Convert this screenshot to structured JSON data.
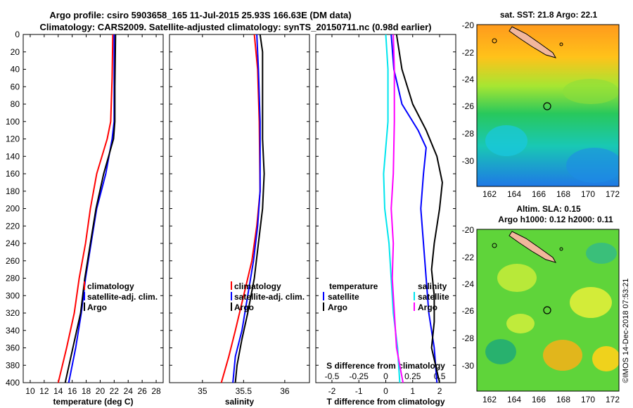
{
  "header": {
    "line1": "Argo profile: csiro 5903658_165 11-Jul-2015 25.93S 166.63E (DM data)",
    "line2": "Climatology: CARS2009. Satellite-adjusted climatology: synTS_20150711.nc (0.98d earlier)"
  },
  "colors": {
    "climatology": "#ff0000",
    "satellite": "#0000ff",
    "argo": "#000000",
    "salinity_diff": "#00e5ee",
    "satellite_salinity": "#ff00ff"
  },
  "depth_axis": {
    "ticks": [
      0,
      20,
      40,
      60,
      80,
      100,
      120,
      140,
      160,
      180,
      200,
      220,
      240,
      260,
      280,
      300,
      320,
      340,
      360,
      380,
      400
    ],
    "ylim": [
      0,
      400
    ]
  },
  "chart_data": [
    {
      "id": "temperature",
      "type": "line",
      "xlabel": "temperature (deg C)",
      "xlim": [
        9,
        29
      ],
      "xticks": [
        10,
        12,
        14,
        16,
        18,
        20,
        22,
        24,
        26,
        28
      ],
      "xtick_labels": [
        "10",
        "12",
        "14",
        "16",
        "18",
        "20",
        "22",
        "24",
        "26",
        "28"
      ],
      "legend": [
        "climatology",
        "satellite-adj. clim.",
        "Argo"
      ],
      "series": [
        {
          "name": "climatology",
          "color": "#ff0000",
          "points": [
            [
              21.8,
              0
            ],
            [
              21.7,
              50
            ],
            [
              21.5,
              100
            ],
            [
              21.0,
              120
            ],
            [
              19.5,
              160
            ],
            [
              18.6,
              200
            ],
            [
              17.9,
              240
            ],
            [
              17.0,
              280
            ],
            [
              16.3,
              320
            ],
            [
              15.2,
              360
            ],
            [
              14.0,
              400
            ]
          ]
        },
        {
          "name": "satellite-adj. clim.",
          "color": "#0000ff",
          "points": [
            [
              22.0,
              0
            ],
            [
              22.0,
              60
            ],
            [
              22.0,
              100
            ],
            [
              21.7,
              120
            ],
            [
              20.8,
              160
            ],
            [
              19.5,
              200
            ],
            [
              18.7,
              240
            ],
            [
              17.9,
              280
            ],
            [
              17.3,
              320
            ],
            [
              16.5,
              360
            ],
            [
              15.5,
              400
            ]
          ]
        },
        {
          "name": "Argo",
          "color": "#000000",
          "points": [
            [
              22.2,
              0
            ],
            [
              22.1,
              60
            ],
            [
              22.1,
              100
            ],
            [
              21.9,
              120
            ],
            [
              20.5,
              160
            ],
            [
              19.4,
              200
            ],
            [
              18.6,
              240
            ],
            [
              17.8,
              280
            ],
            [
              17.2,
              320
            ],
            [
              16.1,
              360
            ],
            [
              15.0,
              400
            ]
          ]
        }
      ]
    },
    {
      "id": "salinity",
      "type": "line",
      "xlabel": "salinity",
      "xlim": [
        34.6,
        36.3
      ],
      "xticks": [
        35,
        35.5,
        36
      ],
      "xtick_labels": [
        "35",
        "35.5",
        "36"
      ],
      "legend": [
        "climatology",
        "satellite-adj. clim.",
        "Argo"
      ],
      "series": [
        {
          "name": "climatology",
          "color": "#ff0000",
          "points": [
            [
              35.63,
              0
            ],
            [
              35.67,
              40
            ],
            [
              35.69,
              100
            ],
            [
              35.7,
              180
            ],
            [
              35.66,
              220
            ],
            [
              35.6,
              260
            ],
            [
              35.5,
              300
            ],
            [
              35.4,
              340
            ],
            [
              35.32,
              370
            ],
            [
              35.23,
              400
            ]
          ]
        },
        {
          "name": "satellite-adj. clim.",
          "color": "#0000ff",
          "points": [
            [
              35.66,
              0
            ],
            [
              35.68,
              40
            ],
            [
              35.7,
              100
            ],
            [
              35.7,
              180
            ],
            [
              35.67,
              220
            ],
            [
              35.62,
              260
            ],
            [
              35.55,
              300
            ],
            [
              35.48,
              340
            ],
            [
              35.4,
              370
            ],
            [
              35.37,
              400
            ]
          ]
        },
        {
          "name": "Argo",
          "color": "#000000",
          "points": [
            [
              35.7,
              0
            ],
            [
              35.73,
              20
            ],
            [
              35.73,
              120
            ],
            [
              35.75,
              160
            ],
            [
              35.73,
              200
            ],
            [
              35.68,
              240
            ],
            [
              35.63,
              280
            ],
            [
              35.55,
              320
            ],
            [
              35.48,
              350
            ],
            [
              35.42,
              380
            ],
            [
              35.4,
              400
            ]
          ]
        }
      ]
    },
    {
      "id": "differences",
      "type": "line",
      "xlabel": "T difference from climatology",
      "xlim": [
        -2.6,
        2.6
      ],
      "xticks": [
        -2,
        -1,
        0,
        1,
        2
      ],
      "xtick_labels": [
        "-2",
        "-1",
        "0",
        "1",
        "2"
      ],
      "secondary_xlabel": "S difference from climatology",
      "secondary_xlim": [
        -0.65,
        0.65
      ],
      "secondary_xticks": [
        -0.5,
        -0.25,
        0,
        0.25,
        0.5
      ],
      "secondary_xtick_labels": [
        "-0.5",
        "-0.25",
        "0",
        "0.25",
        "0.5"
      ],
      "legend_left_title": "temperature",
      "legend_right_title": "salinity",
      "legend_left": [
        "satellite",
        "Argo"
      ],
      "legend_right": [
        "satellite",
        "Argo"
      ],
      "series": [
        {
          "name": "temperature satellite",
          "color": "#0000ff",
          "axis": "T",
          "points": [
            [
              0.2,
              0
            ],
            [
              0.3,
              40
            ],
            [
              0.6,
              80
            ],
            [
              1.2,
              110
            ],
            [
              1.5,
              130
            ],
            [
              1.4,
              160
            ],
            [
              1.3,
              200
            ],
            [
              1.4,
              240
            ],
            [
              1.5,
              280
            ],
            [
              1.6,
              320
            ],
            [
              1.8,
              360
            ],
            [
              1.9,
              400
            ]
          ]
        },
        {
          "name": "temperature Argo",
          "color": "#000000",
          "axis": "T",
          "points": [
            [
              0.4,
              0
            ],
            [
              0.6,
              40
            ],
            [
              1.0,
              80
            ],
            [
              1.5,
              110
            ],
            [
              1.9,
              140
            ],
            [
              2.1,
              170
            ],
            [
              2.0,
              200
            ],
            [
              1.8,
              240
            ],
            [
              1.7,
              270
            ],
            [
              1.8,
              300
            ],
            [
              1.8,
              330
            ],
            [
              1.7,
              360
            ],
            [
              2.0,
              400
            ]
          ]
        },
        {
          "name": "salinity satellite",
          "color": "#00e5ee",
          "axis": "S",
          "points": [
            [
              0.0,
              0
            ],
            [
              0.02,
              40
            ],
            [
              0.02,
              100
            ],
            [
              -0.02,
              160
            ],
            [
              -0.01,
              200
            ],
            [
              0.03,
              240
            ],
            [
              0.05,
              280
            ],
            [
              0.07,
              320
            ],
            [
              0.11,
              360
            ],
            [
              0.13,
              400
            ]
          ]
        },
        {
          "name": "salinity Argo",
          "color": "#ff00ff",
          "axis": "S",
          "points": [
            [
              0.07,
              0
            ],
            [
              0.08,
              40
            ],
            [
              0.08,
              100
            ],
            [
              0.07,
              160
            ],
            [
              0.05,
              200
            ],
            [
              0.07,
              240
            ],
            [
              0.06,
              280
            ],
            [
              0.08,
              320
            ],
            [
              0.1,
              360
            ],
            [
              0.16,
              400
            ]
          ]
        }
      ]
    }
  ],
  "maps": [
    {
      "id": "sst-map",
      "title": "sat. SST: 21.8 Argo: 22.1",
      "lon_ticks": [
        "162",
        "164",
        "166",
        "168",
        "170",
        "172"
      ],
      "lat_ticks": [
        "-20",
        "-22",
        "-24",
        "-26",
        "-28",
        "-30"
      ]
    },
    {
      "id": "sla-map",
      "title": "Altim. SLA: 0.15",
      "subtitle": "Argo h1000: 0.12 h2000: 0.11",
      "lon_ticks": [
        "162",
        "164",
        "166",
        "168",
        "170",
        "172"
      ],
      "lat_ticks": [
        "-20",
        "-22",
        "-24",
        "-26",
        "-28",
        "-30"
      ]
    }
  ],
  "watermark": "©IMOS 14-Dec-2018 07:53:21"
}
